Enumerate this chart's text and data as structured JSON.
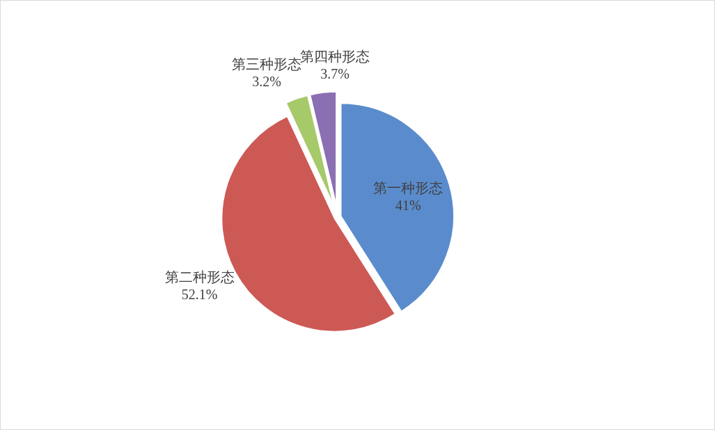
{
  "chart_data": {
    "type": "pie",
    "categories": [
      "第一种形态",
      "第二种形态",
      "第三种形态",
      "第四种形态"
    ],
    "values": [
      41,
      52.1,
      3.2,
      3.7
    ],
    "colors": [
      "#5a8ccd",
      "#cd5955",
      "#a6c96a",
      "#8b6fb3"
    ],
    "value_labels": [
      "41%",
      "52.1%",
      "3.2%",
      "3.7%"
    ]
  }
}
